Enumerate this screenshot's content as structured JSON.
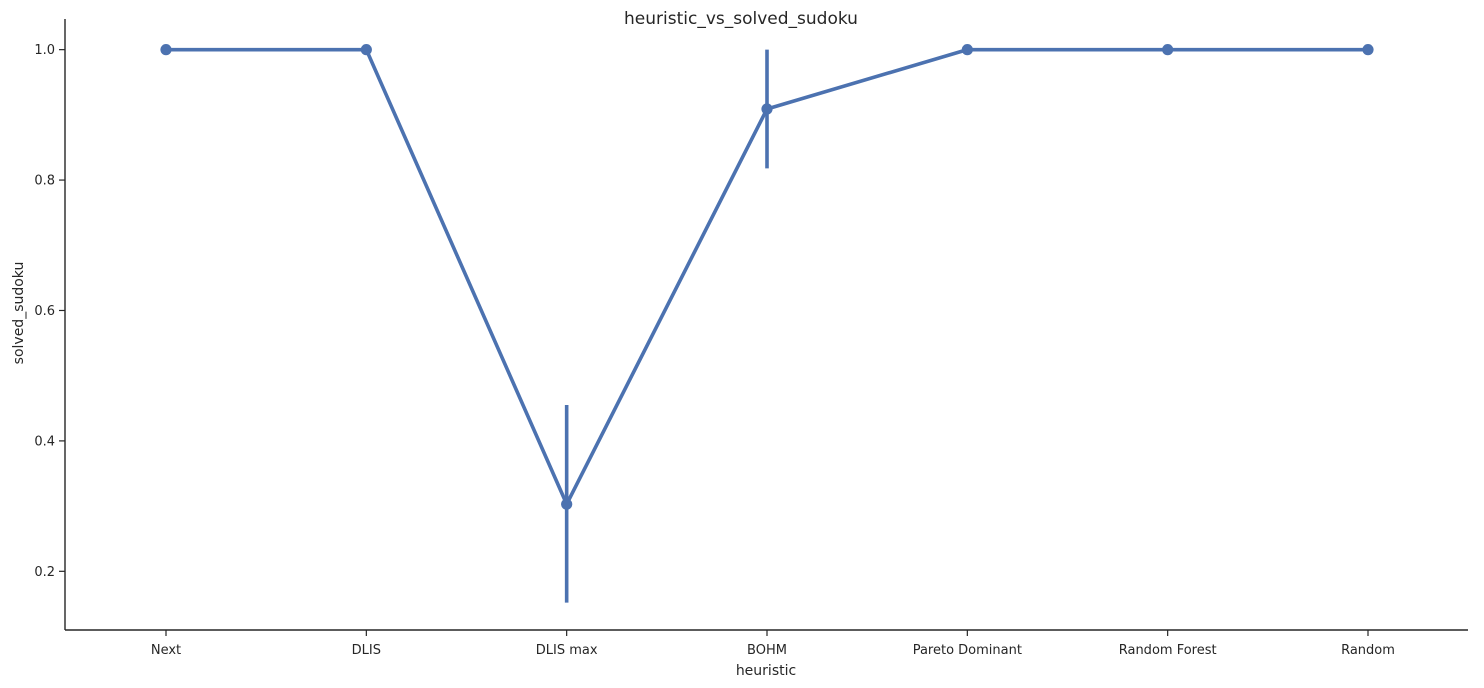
{
  "chart_data": {
    "type": "line",
    "title": "heuristic_vs_solved_sudoku",
    "xlabel": "heuristic",
    "ylabel": "solved_sudoku",
    "categories": [
      "Next",
      "DLIS",
      "DLIS max",
      "BOHM",
      "Pareto Dominant",
      "Random Forest",
      "Random"
    ],
    "series": [
      {
        "values": [
          1.0,
          1.0,
          0.303,
          0.909,
          1.0,
          1.0,
          1.0
        ],
        "error_low": [
          1.0,
          1.0,
          0.152,
          0.818,
          1.0,
          1.0,
          1.0
        ],
        "error_high": [
          1.0,
          1.0,
          0.455,
          1.0,
          1.0,
          1.0,
          1.0
        ],
        "color": "#4c72b0"
      }
    ],
    "ylim": [
      0.11,
      1.047
    ],
    "yticks": [
      0.2,
      0.4,
      0.6,
      0.8,
      1.0
    ],
    "ytick_labels": [
      "0.2",
      "0.4",
      "0.6",
      "0.8",
      "1.0"
    ],
    "grid": false,
    "legend": "none"
  }
}
